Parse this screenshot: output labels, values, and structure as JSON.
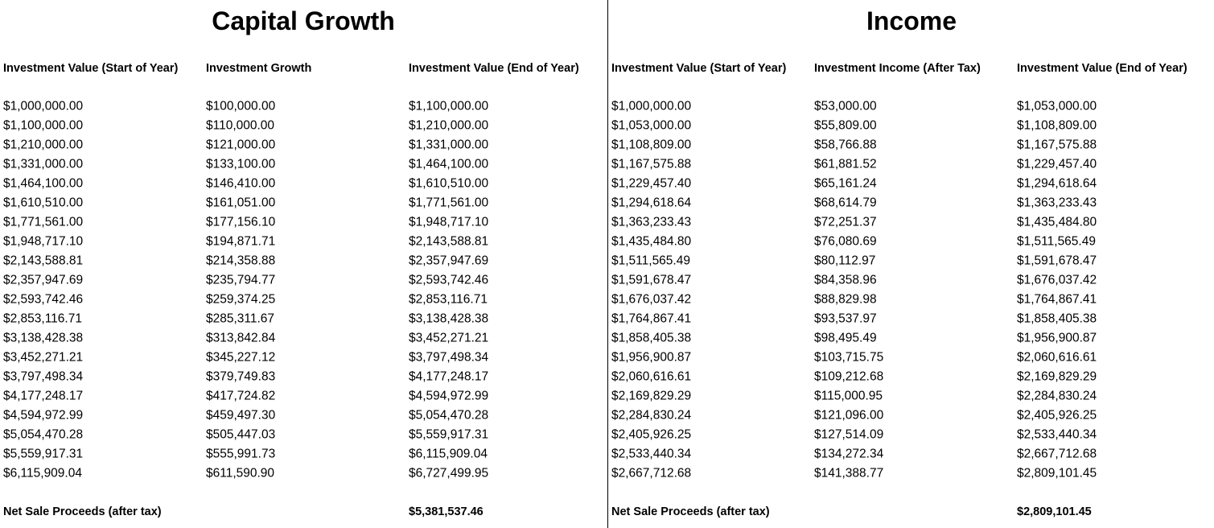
{
  "sections": [
    {
      "title": "Capital Growth",
      "headers": [
        "Investment Value (Start of Year)",
        "Investment Growth",
        "Investment Value (End of Year)"
      ],
      "rows": [
        [
          "$1,000,000.00",
          "$100,000.00",
          "$1,100,000.00"
        ],
        [
          "$1,100,000.00",
          "$110,000.00",
          "$1,210,000.00"
        ],
        [
          "$1,210,000.00",
          "$121,000.00",
          "$1,331,000.00"
        ],
        [
          "$1,331,000.00",
          "$133,100.00",
          "$1,464,100.00"
        ],
        [
          "$1,464,100.00",
          "$146,410.00",
          "$1,610,510.00"
        ],
        [
          "$1,610,510.00",
          "$161,051.00",
          "$1,771,561.00"
        ],
        [
          "$1,771,561.00",
          "$177,156.10",
          "$1,948,717.10"
        ],
        [
          "$1,948,717.10",
          "$194,871.71",
          "$2,143,588.81"
        ],
        [
          "$2,143,588.81",
          "$214,358.88",
          "$2,357,947.69"
        ],
        [
          "$2,357,947.69",
          "$235,794.77",
          "$2,593,742.46"
        ],
        [
          "$2,593,742.46",
          "$259,374.25",
          "$2,853,116.71"
        ],
        [
          "$2,853,116.71",
          "$285,311.67",
          "$3,138,428.38"
        ],
        [
          "$3,138,428.38",
          "$313,842.84",
          "$3,452,271.21"
        ],
        [
          "$3,452,271.21",
          "$345,227.12",
          "$3,797,498.34"
        ],
        [
          "$3,797,498.34",
          "$379,749.83",
          "$4,177,248.17"
        ],
        [
          "$4,177,248.17",
          "$417,724.82",
          "$4,594,972.99"
        ],
        [
          "$4,594,972.99",
          "$459,497.30",
          "$5,054,470.28"
        ],
        [
          "$5,054,470.28",
          "$505,447.03",
          "$5,559,917.31"
        ],
        [
          "$5,559,917.31",
          "$555,991.73",
          "$6,115,909.04"
        ],
        [
          "$6,115,909.04",
          "$611,590.90",
          "$6,727,499.95"
        ]
      ],
      "footer": {
        "label": "Net Sale Proceeds (after tax)",
        "value": "$5,381,537.46"
      }
    },
    {
      "title": "Income",
      "headers": [
        "Investment Value (Start of Year)",
        "Investment Income (After Tax)",
        "Investment Value (End of Year)"
      ],
      "rows": [
        [
          "$1,000,000.00",
          "$53,000.00",
          "$1,053,000.00"
        ],
        [
          "$1,053,000.00",
          "$55,809.00",
          "$1,108,809.00"
        ],
        [
          "$1,108,809.00",
          "$58,766.88",
          "$1,167,575.88"
        ],
        [
          "$1,167,575.88",
          "$61,881.52",
          "$1,229,457.40"
        ],
        [
          "$1,229,457.40",
          "$65,161.24",
          "$1,294,618.64"
        ],
        [
          "$1,294,618.64",
          "$68,614.79",
          "$1,363,233.43"
        ],
        [
          "$1,363,233.43",
          "$72,251.37",
          "$1,435,484.80"
        ],
        [
          "$1,435,484.80",
          "$76,080.69",
          "$1,511,565.49"
        ],
        [
          "$1,511,565.49",
          "$80,112.97",
          "$1,591,678.47"
        ],
        [
          "$1,591,678.47",
          "$84,358.96",
          "$1,676,037.42"
        ],
        [
          "$1,676,037.42",
          "$88,829.98",
          "$1,764,867.41"
        ],
        [
          "$1,764,867.41",
          "$93,537.97",
          "$1,858,405.38"
        ],
        [
          "$1,858,405.38",
          "$98,495.49",
          "$1,956,900.87"
        ],
        [
          "$1,956,900.87",
          "$103,715.75",
          "$2,060,616.61"
        ],
        [
          "$2,060,616.61",
          "$109,212.68",
          "$2,169,829.29"
        ],
        [
          "$2,169,829.29",
          "$115,000.95",
          "$2,284,830.24"
        ],
        [
          "$2,284,830.24",
          "$121,096.00",
          "$2,405,926.25"
        ],
        [
          "$2,405,926.25",
          "$127,514.09",
          "$2,533,440.34"
        ],
        [
          "$2,533,440.34",
          "$134,272.34",
          "$2,667,712.68"
        ],
        [
          "$2,667,712.68",
          "$141,388.77",
          "$2,809,101.45"
        ]
      ],
      "footer": {
        "label": "Net Sale Proceeds (after tax)",
        "value": "$2,809,101.45"
      }
    }
  ]
}
